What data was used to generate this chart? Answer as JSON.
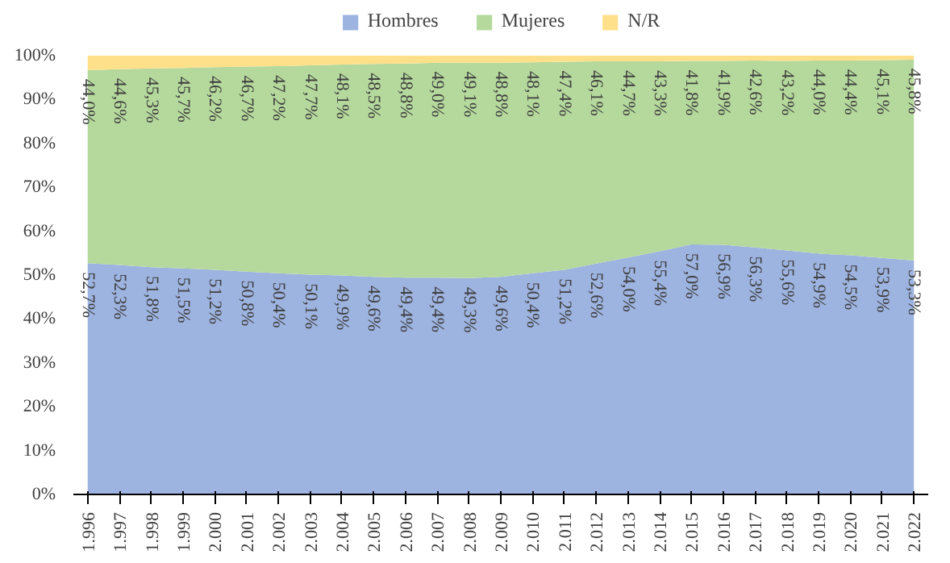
{
  "chart_data": {
    "type": "area",
    "stacked": true,
    "categories": [
      "1.996",
      "1.997",
      "1.998",
      "1.999",
      "2.000",
      "2.001",
      "2.002",
      "2.003",
      "2.004",
      "2.005",
      "2.006",
      "2.007",
      "2.008",
      "2.009",
      "2.010",
      "2.011",
      "2.012",
      "2.013",
      "2.014",
      "2.015",
      "2.016",
      "2.017",
      "2.018",
      "2.019",
      "2.020",
      "2.021",
      "2.022"
    ],
    "series": [
      {
        "name": "Hombres",
        "color": "#9db3e0",
        "values": [
          52.7,
          52.3,
          51.8,
          51.5,
          51.2,
          50.8,
          50.4,
          50.1,
          49.9,
          49.6,
          49.4,
          49.4,
          49.3,
          49.6,
          50.4,
          51.2,
          52.6,
          54.0,
          55.4,
          57.0,
          56.9,
          56.3,
          55.6,
          54.9,
          54.5,
          53.9,
          53.3
        ],
        "value_labels": [
          "52,7%",
          "52,3%",
          "51,8%",
          "51,5%",
          "51,2%",
          "50,8%",
          "50,4%",
          "50,1%",
          "49,9%",
          "49,6%",
          "49,4%",
          "49,4%",
          "49,3%",
          "49,6%",
          "50,4%",
          "51,2%",
          "52,6%",
          "54,0%",
          "55,4%",
          "57,0%",
          "56,9%",
          "56,3%",
          "55,6%",
          "54,9%",
          "54,5%",
          "53,9%",
          "53,3%"
        ]
      },
      {
        "name": "Mujeres",
        "color": "#b5d99c",
        "values": [
          44.0,
          44.6,
          45.3,
          45.7,
          46.2,
          46.7,
          47.2,
          47.7,
          48.1,
          48.5,
          48.8,
          49.0,
          49.1,
          48.8,
          48.1,
          47.4,
          46.1,
          44.7,
          43.3,
          41.8,
          41.9,
          42.6,
          43.2,
          44.0,
          44.4,
          45.1,
          45.8
        ],
        "value_labels": [
          "44,0%",
          "44,6%",
          "45,3%",
          "45,7%",
          "46,2%",
          "46,7%",
          "47,2%",
          "47,7%",
          "48,1%",
          "48,5%",
          "48,8%",
          "49,0%",
          "49,1%",
          "48,8%",
          "48,1%",
          "47,4%",
          "46,1%",
          "44,7%",
          "43,3%",
          "41,8%",
          "41,9%",
          "42,6%",
          "43,2%",
          "44,0%",
          "44,4%",
          "45,1%",
          "45,8%"
        ]
      },
      {
        "name": "N/R",
        "color": "#ffe08a",
        "values": [
          3.3,
          3.1,
          2.9,
          2.8,
          2.6,
          2.5,
          2.4,
          2.2,
          2.0,
          1.9,
          1.8,
          1.6,
          1.6,
          1.6,
          1.5,
          1.4,
          1.3,
          1.3,
          1.3,
          1.2,
          1.2,
          1.1,
          1.2,
          1.1,
          1.1,
          1.0,
          0.9
        ]
      }
    ],
    "ylim": [
      0,
      100
    ],
    "yticks": [
      {
        "value": 0,
        "label": "0%"
      },
      {
        "value": 10,
        "label": "10%"
      },
      {
        "value": 20,
        "label": "20%"
      },
      {
        "value": 30,
        "label": "30%"
      },
      {
        "value": 40,
        "label": "40%"
      },
      {
        "value": 50,
        "label": "50%"
      },
      {
        "value": 60,
        "label": "60%"
      },
      {
        "value": 70,
        "label": "70%"
      },
      {
        "value": 80,
        "label": "80%"
      },
      {
        "value": 90,
        "label": "90%"
      },
      {
        "value": 100,
        "label": "100%"
      }
    ],
    "legend": "top"
  }
}
